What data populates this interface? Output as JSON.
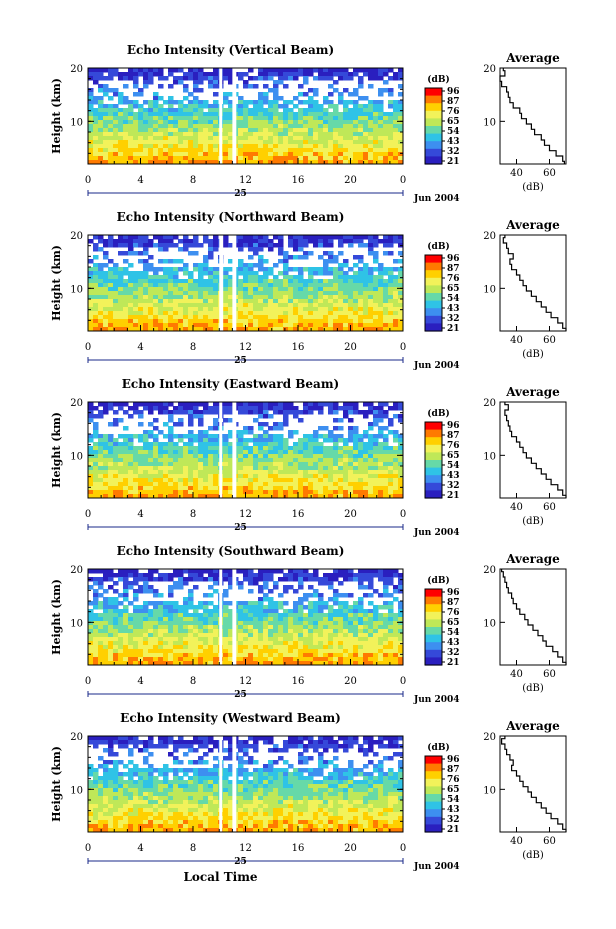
{
  "chart_data": [
    {
      "type": "heatmap",
      "title": "Echo Intensity (Vertical Beam)",
      "ylabel": "Height (km)",
      "ylim": [
        2,
        20
      ],
      "yticks": [
        10,
        20
      ],
      "xticks": [
        "0",
        "4",
        "8",
        "12",
        "16",
        "20",
        "0"
      ],
      "xlim": [
        0,
        24
      ],
      "date_day": "25",
      "date_label": "Jun 2004",
      "colorbar_unit": "(dB)",
      "colorbar_ticks": [
        "96",
        "87",
        "76",
        "65",
        "54",
        "43",
        "32",
        "21"
      ],
      "gaps_hours": [
        [
          10.0,
          10.2
        ],
        [
          11.0,
          11.3
        ]
      ],
      "profile_title": "Average",
      "profile_xlabel": "(dB)",
      "profile_xticks": [
        "40",
        "60"
      ],
      "profile_yticks": [
        10,
        20
      ],
      "profile_xlim": [
        30,
        70
      ],
      "profile": {
        "height_km": [
          2,
          3,
          4,
          5,
          6,
          7,
          8,
          9,
          10,
          11,
          12,
          13,
          14,
          15,
          16,
          17,
          18,
          19,
          20
        ],
        "db": [
          69,
          68,
          64,
          60,
          57,
          55,
          51,
          49,
          46,
          43,
          42,
          38,
          36,
          35,
          34,
          31,
          30,
          33,
          32
        ]
      }
    },
    {
      "type": "heatmap",
      "title": "Echo Intensity (Northward Beam)",
      "ylabel": "Height (km)",
      "ylim": [
        2,
        20
      ],
      "yticks": [
        10,
        20
      ],
      "xticks": [
        "0",
        "4",
        "8",
        "12",
        "16",
        "20",
        "0"
      ],
      "xlim": [
        0,
        24
      ],
      "date_day": "25",
      "date_label": "Jun 2004",
      "colorbar_unit": "(dB)",
      "colorbar_ticks": [
        "96",
        "87",
        "76",
        "65",
        "54",
        "43",
        "32",
        "21"
      ],
      "gaps_hours": [
        [
          10.0,
          10.3
        ],
        [
          11.0,
          11.3
        ]
      ],
      "profile_title": "Average",
      "profile_xlabel": "(dB)",
      "profile_xticks": [
        "40",
        "60"
      ],
      "profile_yticks": [
        10,
        20
      ],
      "profile_xlim": [
        30,
        70
      ],
      "profile": {
        "height_km": [
          2,
          3,
          4,
          5,
          6,
          7,
          8,
          9,
          10,
          11,
          12,
          13,
          14,
          15,
          16,
          17,
          18,
          19,
          20
        ],
        "db": [
          70,
          68,
          65,
          61,
          58,
          55,
          52,
          49,
          46,
          44,
          42,
          40,
          37,
          36,
          38,
          35,
          34,
          32,
          33
        ]
      }
    },
    {
      "type": "heatmap",
      "title": "Echo Intensity (Eastward Beam)",
      "ylabel": "Height (km)",
      "ylim": [
        2,
        20
      ],
      "yticks": [
        10,
        20
      ],
      "xticks": [
        "0",
        "4",
        "8",
        "12",
        "16",
        "20",
        "0"
      ],
      "xlim": [
        0,
        24
      ],
      "date_day": "25",
      "date_label": "Jun 2004",
      "colorbar_unit": "(dB)",
      "colorbar_ticks": [
        "96",
        "87",
        "76",
        "65",
        "54",
        "43",
        "32",
        "21"
      ],
      "gaps_hours": [
        [
          10.0,
          10.2
        ],
        [
          11.0,
          11.3
        ]
      ],
      "profile_title": "Average",
      "profile_xlabel": "(dB)",
      "profile_xticks": [
        "40",
        "60"
      ],
      "profile_yticks": [
        10,
        20
      ],
      "profile_xlim": [
        30,
        70
      ],
      "profile": {
        "height_km": [
          2,
          3,
          4,
          5,
          6,
          7,
          8,
          9,
          10,
          11,
          12,
          13,
          14,
          15,
          16,
          17,
          18,
          19,
          20
        ],
        "db": [
          70,
          68,
          65,
          61,
          58,
          55,
          52,
          49,
          46,
          44,
          42,
          40,
          37,
          36,
          35,
          34,
          33,
          35,
          33
        ]
      }
    },
    {
      "type": "heatmap",
      "title": "Echo Intensity (Southward Beam)",
      "ylabel": "Height (km)",
      "ylim": [
        2,
        20
      ],
      "yticks": [
        10,
        20
      ],
      "xticks": [
        "0",
        "4",
        "8",
        "12",
        "16",
        "20",
        "0"
      ],
      "xlim": [
        0,
        24
      ],
      "date_day": "25",
      "date_label": "Jun 2004",
      "colorbar_unit": "(dB)",
      "colorbar_ticks": [
        "96",
        "87",
        "76",
        "65",
        "54",
        "43",
        "32",
        "21"
      ],
      "gaps_hours": [
        [
          10.0,
          10.2
        ],
        [
          11.0,
          11.3
        ]
      ],
      "profile_title": "Average",
      "profile_xlabel": "(dB)",
      "profile_xticks": [
        "40",
        "60"
      ],
      "profile_yticks": [
        10,
        20
      ],
      "profile_xlim": [
        30,
        70
      ],
      "profile": {
        "height_km": [
          2,
          3,
          4,
          5,
          6,
          7,
          8,
          9,
          10,
          11,
          12,
          13,
          14,
          15,
          16,
          17,
          18,
          19,
          20
        ],
        "db": [
          70,
          68,
          65,
          62,
          58,
          56,
          53,
          50,
          47,
          45,
          42,
          40,
          38,
          37,
          35,
          34,
          33,
          32,
          31
        ]
      }
    },
    {
      "type": "heatmap",
      "title": "Echo Intensity (Westward Beam)",
      "ylabel": "Height (km)",
      "ylim": [
        2,
        20
      ],
      "yticks": [
        10,
        20
      ],
      "xticks": [
        "0",
        "4",
        "8",
        "12",
        "16",
        "20",
        "0"
      ],
      "xlim": [
        0,
        24
      ],
      "date_day": "25",
      "date_label": "Jun 2004",
      "x_axis_title": "Local Time",
      "colorbar_unit": "(dB)",
      "colorbar_ticks": [
        "96",
        "87",
        "76",
        "65",
        "54",
        "43",
        "32",
        "21"
      ],
      "gaps_hours": [
        [
          10.0,
          10.2
        ],
        [
          11.0,
          11.3
        ]
      ],
      "profile_title": "Average",
      "profile_xlabel": "(dB)",
      "profile_xticks": [
        "40",
        "60"
      ],
      "profile_yticks": [
        10,
        20
      ],
      "profile_xlim": [
        30,
        70
      ],
      "profile": {
        "height_km": [
          2,
          3,
          4,
          5,
          6,
          7,
          8,
          9,
          10,
          11,
          12,
          13,
          14,
          15,
          16,
          17,
          18,
          19,
          20
        ],
        "db": [
          70,
          68,
          65,
          61,
          58,
          55,
          52,
          49,
          47,
          44,
          42,
          40,
          37,
          38,
          36,
          34,
          33,
          31,
          33
        ]
      }
    }
  ],
  "colors": {
    "colorbar": [
      "#ff0000",
      "#ff7a00",
      "#ffd000",
      "#f2f25a",
      "#bfe858",
      "#66d9a8",
      "#2fc3e6",
      "#3d8ff0",
      "#3549d9",
      "#2a1fbf"
    ],
    "axis": "#000000",
    "date_axis": "#1a2a8a",
    "gap": "#ffffff"
  }
}
